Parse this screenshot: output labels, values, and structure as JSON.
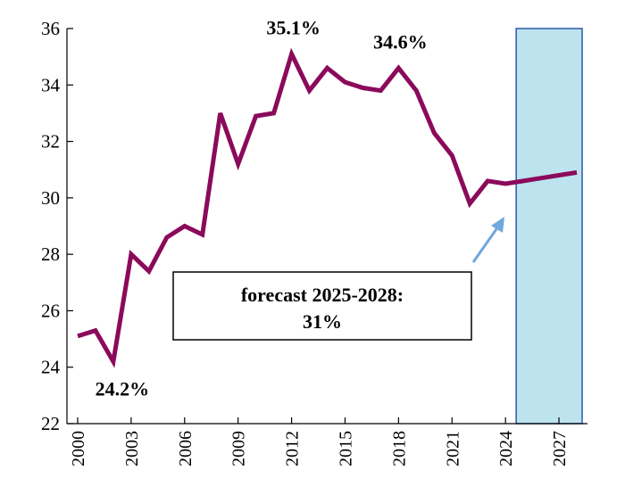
{
  "chart_data": {
    "type": "line",
    "title": "",
    "xlabel": "",
    "ylabel": "",
    "ylim": [
      22,
      36
    ],
    "xlim": [
      2000,
      2028
    ],
    "y_ticks": [
      22,
      24,
      26,
      28,
      30,
      32,
      34,
      36
    ],
    "x_ticks": [
      2000,
      2003,
      2006,
      2009,
      2012,
      2015,
      2018,
      2021,
      2024,
      2027
    ],
    "grid": false,
    "legend": "none",
    "colors": {
      "series": "#8b0a5b",
      "forecast_fill": "#bde3ef",
      "forecast_border": "#2a5aa6",
      "arrow": "#6fa8dc"
    },
    "series": [
      {
        "x": [
          2000,
          2001,
          2002,
          2003,
          2004,
          2005,
          2006,
          2007,
          2008,
          2009,
          2010,
          2011,
          2012,
          2013,
          2014,
          2015,
          2016,
          2017,
          2018,
          2019,
          2020,
          2021,
          2022,
          2023,
          2024,
          2025,
          2026,
          2027,
          2028
        ],
        "values": [
          25.1,
          25.3,
          24.2,
          28.0,
          27.4,
          28.6,
          29.0,
          28.7,
          33.0,
          31.2,
          32.9,
          33.0,
          35.1,
          33.8,
          34.6,
          34.1,
          33.9,
          33.8,
          34.6,
          33.8,
          32.3,
          31.5,
          29.8,
          30.6,
          30.5,
          30.6,
          30.7,
          30.8,
          30.9
        ]
      }
    ],
    "forecast_range": [
      2024.6,
      2028.3
    ],
    "annotations": [
      {
        "text": "35.1%",
        "x": 2012,
        "y": 35.1
      },
      {
        "text": "34.6%",
        "x": 2018,
        "y": 34.6
      },
      {
        "text": "24.2%",
        "x": 2002,
        "y": 24.2
      }
    ],
    "forecast_label": {
      "line1": "forecast 2025-2028:",
      "line2": "31%"
    }
  }
}
